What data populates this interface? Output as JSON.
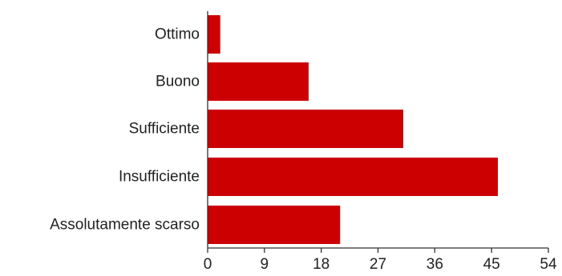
{
  "chart_data": {
    "type": "bar",
    "orientation": "horizontal",
    "categories": [
      "Ottimo",
      "Buono",
      "Sufficiente",
      "Insufficiente",
      "Assolutamente scarso"
    ],
    "values": [
      2,
      16,
      31,
      46,
      21
    ],
    "xlim": [
      0,
      54
    ],
    "xticks": [
      "0",
      "9",
      "18",
      "27",
      "36",
      "45",
      "54"
    ],
    "bar_color": "#cc0000",
    "grid": false
  }
}
